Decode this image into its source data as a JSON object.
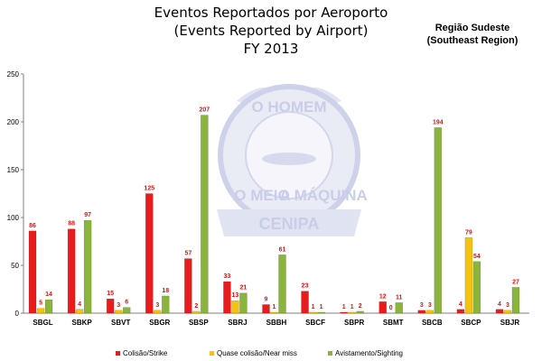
{
  "chart_data": {
    "type": "bar",
    "title": [
      "Eventos Reportados por Aeroporto",
      "(Events Reported by Airport)",
      "FY 2013"
    ],
    "region": [
      "Região Sudeste",
      "(Southeast Region)"
    ],
    "categories": [
      "SBGL",
      "SBKP",
      "SBVT",
      "SBGR",
      "SBSP",
      "SBRJ",
      "SBBH",
      "SBCF",
      "SBPR",
      "SBMT",
      "SBCB",
      "SBCP",
      "SBJR"
    ],
    "series": [
      {
        "name": "Colisão/Strike",
        "color": "#e81c1c",
        "values": [
          86,
          88,
          15,
          125,
          57,
          33,
          9,
          23,
          1,
          12,
          3,
          4,
          4
        ]
      },
      {
        "name": "Quase colisão/Near miss",
        "color": "#f5c30c",
        "values": [
          5,
          4,
          3,
          3,
          2,
          13,
          1,
          1,
          1,
          0,
          3,
          79,
          3
        ]
      },
      {
        "name": "Avistamento/Sighting",
        "color": "#8ab43c",
        "values": [
          14,
          97,
          6,
          18,
          207,
          21,
          61,
          1,
          2,
          11,
          194,
          54,
          27
        ]
      }
    ],
    "ylim": [
      0,
      250
    ],
    "yticks": [
      0,
      50,
      100,
      150,
      200,
      250
    ],
    "grid": false,
    "legend": "bottom",
    "watermark": {
      "top": "O HOMEM",
      "bottom_left": "O MEIO",
      "bottom_right": "A MÁQUINA",
      "banner": "CENIPA"
    }
  }
}
